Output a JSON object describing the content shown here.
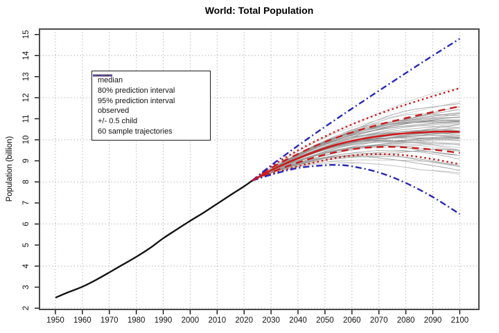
{
  "chart_data": {
    "type": "line",
    "title": "World: Total Population",
    "ylabel": "Population (billion)",
    "xlabel": "",
    "xlim": [
      1944.1,
      2107.1
    ],
    "ylim": [
      1.94,
      15.26
    ],
    "x_ticks": [
      1950,
      1960,
      1970,
      1980,
      1990,
      2000,
      2010,
      2020,
      2030,
      2040,
      2050,
      2060,
      2070,
      2080,
      2090,
      2100
    ],
    "y_ticks": [
      2,
      3,
      4,
      5,
      6,
      7,
      8,
      9,
      10,
      11,
      12,
      13,
      14,
      15
    ],
    "grid": {
      "x_at": [
        1950,
        1960,
        1970,
        1980,
        1990,
        2000,
        2010,
        2020,
        2030,
        2040,
        2050,
        2060,
        2070,
        2080,
        2090,
        2100
      ],
      "y_at": [
        2,
        4,
        6,
        8,
        10,
        12,
        14
      ],
      "color": "#b5b5b5",
      "style": "dotted"
    },
    "colors": {
      "red": "#cc1a1a",
      "blue": "#2525bb",
      "black": "#141414",
      "gray_trajectory": "#8f8f8f",
      "border": "#4a4a4a",
      "tick": "#111111"
    },
    "styles": {
      "median": {
        "color": "#cc1a1a",
        "width": 2.6,
        "dash": ""
      },
      "pi80": {
        "color": "#cc1a1a",
        "width": 2.4,
        "dash": "10,7"
      },
      "pi95": {
        "color": "#cc1a1a",
        "width": 2.5,
        "dash": "2.5,4"
      },
      "observed": {
        "color": "#141414",
        "width": 2.4,
        "dash": ""
      },
      "half_child": {
        "color": "#2525bb",
        "width": 2.4,
        "dash": "9,4,2,4"
      },
      "trajectory": {
        "color": "#8f8f8f",
        "width": 0.8,
        "dash": ""
      }
    },
    "series": [
      {
        "name": "95% upper",
        "style": "pi95",
        "x": [
          2023,
          2030,
          2040,
          2050,
          2060,
          2070,
          2080,
          2090,
          2100
        ],
        "y": [
          8.06,
          8.73,
          9.5,
          10.16,
          10.73,
          11.23,
          11.67,
          12.07,
          12.45
        ]
      },
      {
        "name": "95% lower",
        "style": "pi95",
        "x": [
          2023,
          2030,
          2040,
          2050,
          2060,
          2070,
          2080,
          2090,
          2100
        ],
        "y": [
          8.06,
          8.37,
          8.74,
          9.03,
          9.25,
          9.32,
          9.26,
          9.08,
          8.84
        ]
      },
      {
        "name": "80% upper",
        "style": "pi80",
        "x": [
          2023,
          2030,
          2040,
          2050,
          2060,
          2070,
          2080,
          2090,
          2100
        ],
        "y": [
          8.06,
          8.66,
          9.33,
          9.9,
          10.35,
          10.72,
          11.03,
          11.32,
          11.59
        ]
      },
      {
        "name": "80% lower",
        "style": "pi80",
        "x": [
          2023,
          2030,
          2040,
          2050,
          2060,
          2070,
          2080,
          2090,
          2100
        ],
        "y": [
          8.06,
          8.45,
          8.92,
          9.29,
          9.55,
          9.66,
          9.64,
          9.53,
          9.38
        ]
      },
      {
        "name": "+0.5 child",
        "style": "half_child",
        "x": [
          2023,
          2030,
          2040,
          2050,
          2060,
          2070,
          2080,
          2090,
          2100
        ],
        "y": [
          8.06,
          8.78,
          9.72,
          10.62,
          11.48,
          12.33,
          13.17,
          14.0,
          14.8
        ]
      },
      {
        "name": "-0.5 child",
        "style": "half_child",
        "x": [
          2023,
          2030,
          2040,
          2050,
          2055,
          2060,
          2070,
          2080,
          2090,
          2100
        ],
        "y": [
          8.06,
          8.34,
          8.66,
          8.79,
          8.8,
          8.74,
          8.45,
          7.95,
          7.28,
          6.47
        ]
      },
      {
        "name": "observed",
        "style": "observed",
        "x": [
          1950,
          1955,
          1960,
          1965,
          1970,
          1975,
          1980,
          1985,
          1990,
          1995,
          2000,
          2005,
          2010,
          2015,
          2020,
          2023
        ],
        "y": [
          2.5,
          2.77,
          3.02,
          3.34,
          3.7,
          4.07,
          4.44,
          4.85,
          5.32,
          5.74,
          6.15,
          6.54,
          6.96,
          7.38,
          7.79,
          8.06
        ]
      },
      {
        "name": "median",
        "style": "median",
        "x": [
          2023,
          2030,
          2035,
          2040,
          2045,
          2050,
          2055,
          2060,
          2065,
          2070,
          2075,
          2080,
          2085,
          2090,
          2095,
          2100
        ],
        "y": [
          8.06,
          8.55,
          8.85,
          9.12,
          9.37,
          9.6,
          9.79,
          9.95,
          10.07,
          10.17,
          10.25,
          10.31,
          10.35,
          10.38,
          10.39,
          10.38
        ]
      }
    ],
    "trajectories": {
      "count": 60,
      "seed": 20240607,
      "start_year": 2023,
      "end_year": 2100,
      "start_value": 8.06,
      "end_spread": 0.95,
      "shades": [
        "#bdbdbd",
        "#a6a6a6",
        "#8f8f8f",
        "#787878"
      ]
    },
    "legend": {
      "items": [
        {
          "label": "median",
          "style": "median"
        },
        {
          "label": "80% prediction interval",
          "style": "pi80"
        },
        {
          "label": "95% prediction interval",
          "style": "pi95"
        },
        {
          "label": "observed",
          "style": "observed"
        },
        {
          "label": "+/- 0.5 child",
          "style": "half_child"
        },
        {
          "label": "60 sample trajectories",
          "style": "trajectory"
        }
      ]
    }
  }
}
